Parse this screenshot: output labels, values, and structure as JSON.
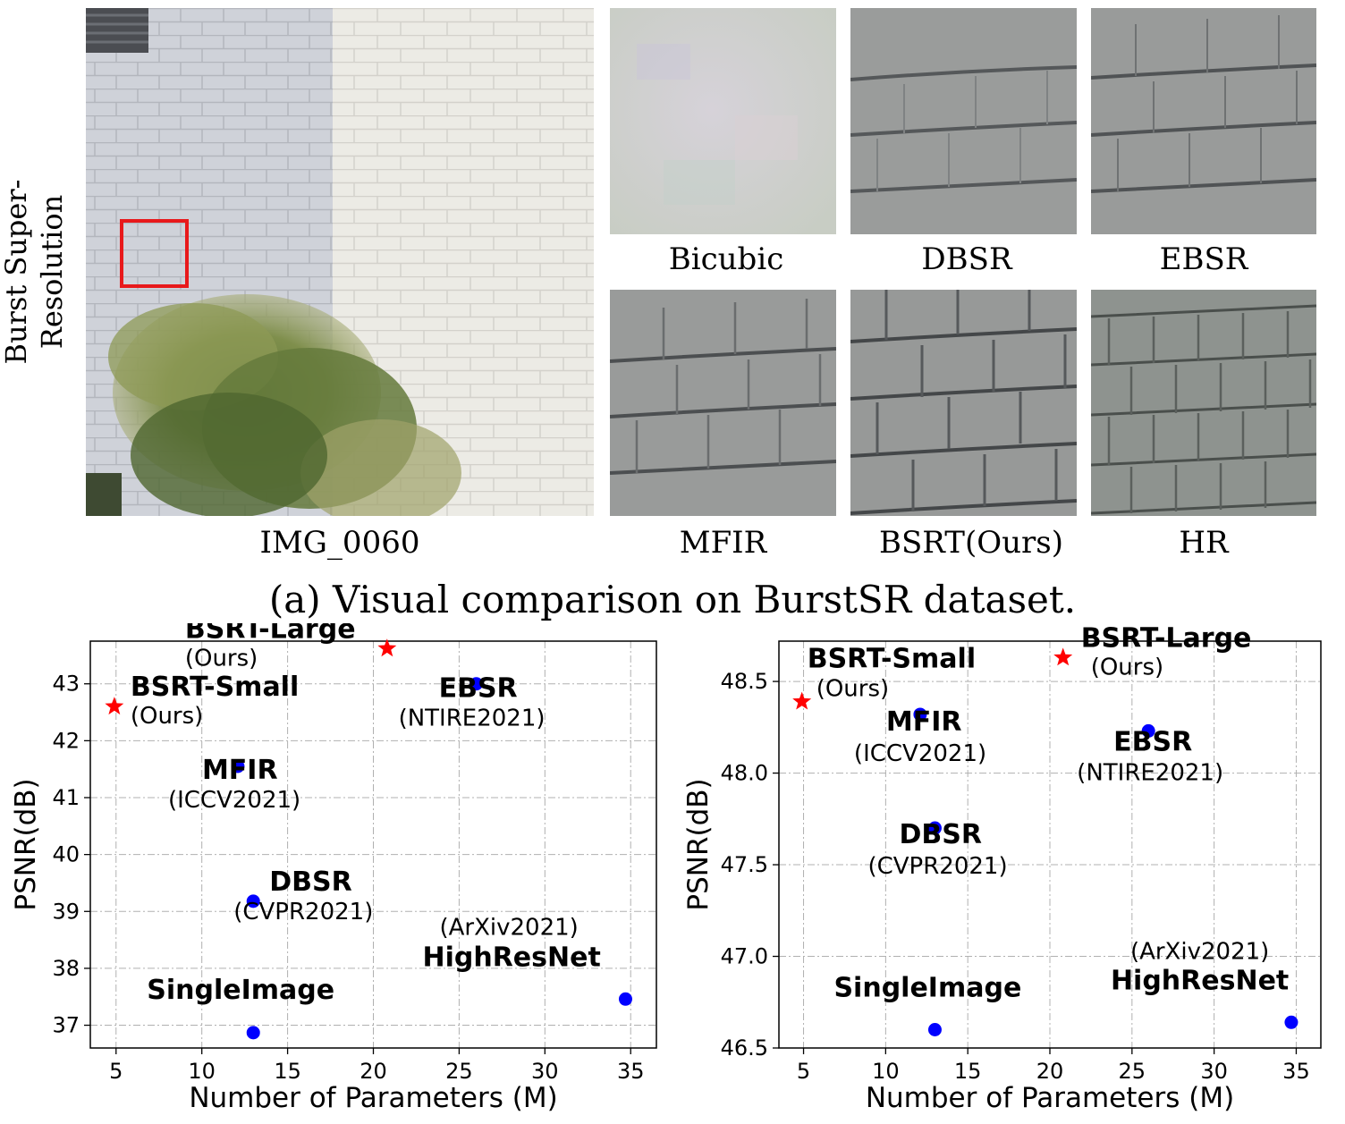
{
  "figure": {
    "row_label": "Burst Super-Resolution",
    "main_image_caption": "IMG_0060",
    "crops": [
      {
        "label": "Bicubic"
      },
      {
        "label": "DBSR"
      },
      {
        "label": "EBSR"
      },
      {
        "label": "MFIR"
      },
      {
        "label": "BSRT(Ours)"
      },
      {
        "label": "HR"
      }
    ],
    "caption": "(a) Visual comparison on BurstSR dataset."
  },
  "colors": {
    "ours": "#ff0000",
    "other": "#0000ff",
    "highlight_box": "#e8191b"
  },
  "chart_data": [
    {
      "type": "scatter",
      "xlabel": "Number of Parameters (M)",
      "ylabel": "PSNR(dB)",
      "xlim": [
        3.5,
        36.5
      ],
      "ylim": [
        36.6,
        43.75
      ],
      "xticks": [
        5,
        10,
        15,
        20,
        25,
        30,
        35
      ],
      "yticks": [
        37,
        38,
        39,
        40,
        41,
        42,
        43
      ],
      "grid": true,
      "points": [
        {
          "name": "BSRT-Large",
          "sub": "(Ours)",
          "x": 20.8,
          "y": 43.62,
          "ours": true
        },
        {
          "name": "BSRT-Small",
          "sub": "(Ours)",
          "x": 4.9,
          "y": 42.6,
          "ours": true
        },
        {
          "name": "EBSR",
          "sub": "(NTIRE2021)",
          "x": 26.0,
          "y": 43.0,
          "ours": false
        },
        {
          "name": "MFIR",
          "sub": "(ICCV2021)",
          "x": 12.1,
          "y": 41.55,
          "ours": false
        },
        {
          "name": "DBSR",
          "sub": "(CVPR2021)",
          "x": 13.0,
          "y": 39.18,
          "ours": false
        },
        {
          "name": "HighResNet",
          "sub": "(ArXiv2021)",
          "x": 34.7,
          "y": 37.46,
          "ours": false
        },
        {
          "name": "SingleImage",
          "sub": "",
          "x": 13.0,
          "y": 36.87,
          "ours": false
        }
      ]
    },
    {
      "type": "scatter",
      "xlabel": "Number of Parameters (M)",
      "ylabel": "PSNR(dB)",
      "xlim": [
        3.5,
        36.5
      ],
      "ylim": [
        46.5,
        48.72
      ],
      "xticks": [
        5,
        10,
        15,
        20,
        25,
        30,
        35
      ],
      "yticks": [
        "46.5",
        "47.0",
        "47.5",
        "48.0",
        "48.5"
      ],
      "grid": true,
      "points": [
        {
          "name": "BSRT-Large",
          "sub": "(Ours)",
          "x": 20.8,
          "y": 48.63,
          "ours": true
        },
        {
          "name": "BSRT-Small",
          "sub": "(Ours)",
          "x": 4.9,
          "y": 48.39,
          "ours": true
        },
        {
          "name": "EBSR",
          "sub": "(NTIRE2021)",
          "x": 26.0,
          "y": 48.23,
          "ours": false
        },
        {
          "name": "MFIR",
          "sub": "(ICCV2021)",
          "x": 12.1,
          "y": 48.32,
          "ours": false
        },
        {
          "name": "DBSR",
          "sub": "(CVPR2021)",
          "x": 13.0,
          "y": 47.7,
          "ours": false
        },
        {
          "name": "HighResNet",
          "sub": "(ArXiv2021)",
          "x": 34.7,
          "y": 46.64,
          "ours": false
        },
        {
          "name": "SingleImage",
          "sub": "",
          "x": 13.0,
          "y": 46.6,
          "ours": false
        }
      ]
    }
  ]
}
